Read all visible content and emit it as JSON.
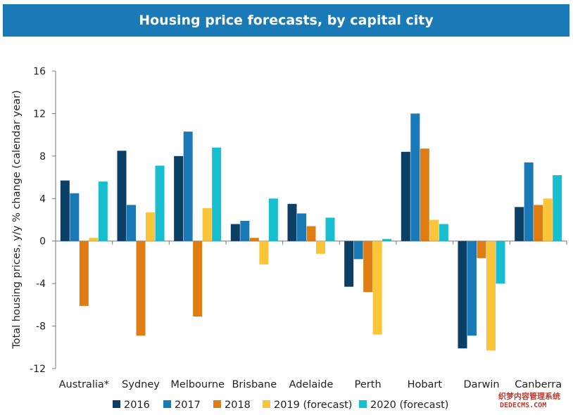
{
  "title": "Housing price forecasts, by capital city",
  "watermark": {
    "line1": "织梦内容管理系统",
    "line2": "DEDECMS.COM"
  },
  "chart_data": {
    "type": "bar",
    "title": "Housing price forecasts, by capital city",
    "ylabel": "Total housing prices, y/y % change (calendar year)",
    "xlabel": "",
    "ylim": [
      -12,
      16
    ],
    "yticks": [
      -12,
      -8,
      -4,
      0,
      4,
      8,
      12,
      16
    ],
    "grid": false,
    "legend_position": "bottom",
    "categories": [
      "Australia*",
      "Sydney",
      "Melbourne",
      "Brisbane",
      "Adelaide",
      "Perth",
      "Hobart",
      "Darwin",
      "Canberra"
    ],
    "series": [
      {
        "name": "2016",
        "color": "#0b3f66",
        "values": [
          5.7,
          8.5,
          8.0,
          1.6,
          3.5,
          -4.3,
          8.4,
          -10.1,
          3.2
        ]
      },
      {
        "name": "2017",
        "color": "#1a7ab8",
        "values": [
          4.5,
          3.4,
          10.3,
          1.9,
          2.6,
          -1.7,
          12.0,
          -8.9,
          7.4
        ]
      },
      {
        "name": "2018",
        "color": "#df7c12",
        "values": [
          -6.1,
          -8.9,
          -7.1,
          0.3,
          1.4,
          -4.8,
          8.7,
          -1.6,
          3.4
        ]
      },
      {
        "name": "2019 (forecast)",
        "color": "#fbc53a",
        "values": [
          0.3,
          2.7,
          3.1,
          -2.2,
          -1.2,
          -8.8,
          2.0,
          -10.3,
          4.0
        ]
      },
      {
        "name": "2020 (forecast)",
        "color": "#17becf",
        "values": [
          5.6,
          7.1,
          8.8,
          4.0,
          2.2,
          0.2,
          1.6,
          -4.0,
          6.2
        ]
      }
    ]
  }
}
